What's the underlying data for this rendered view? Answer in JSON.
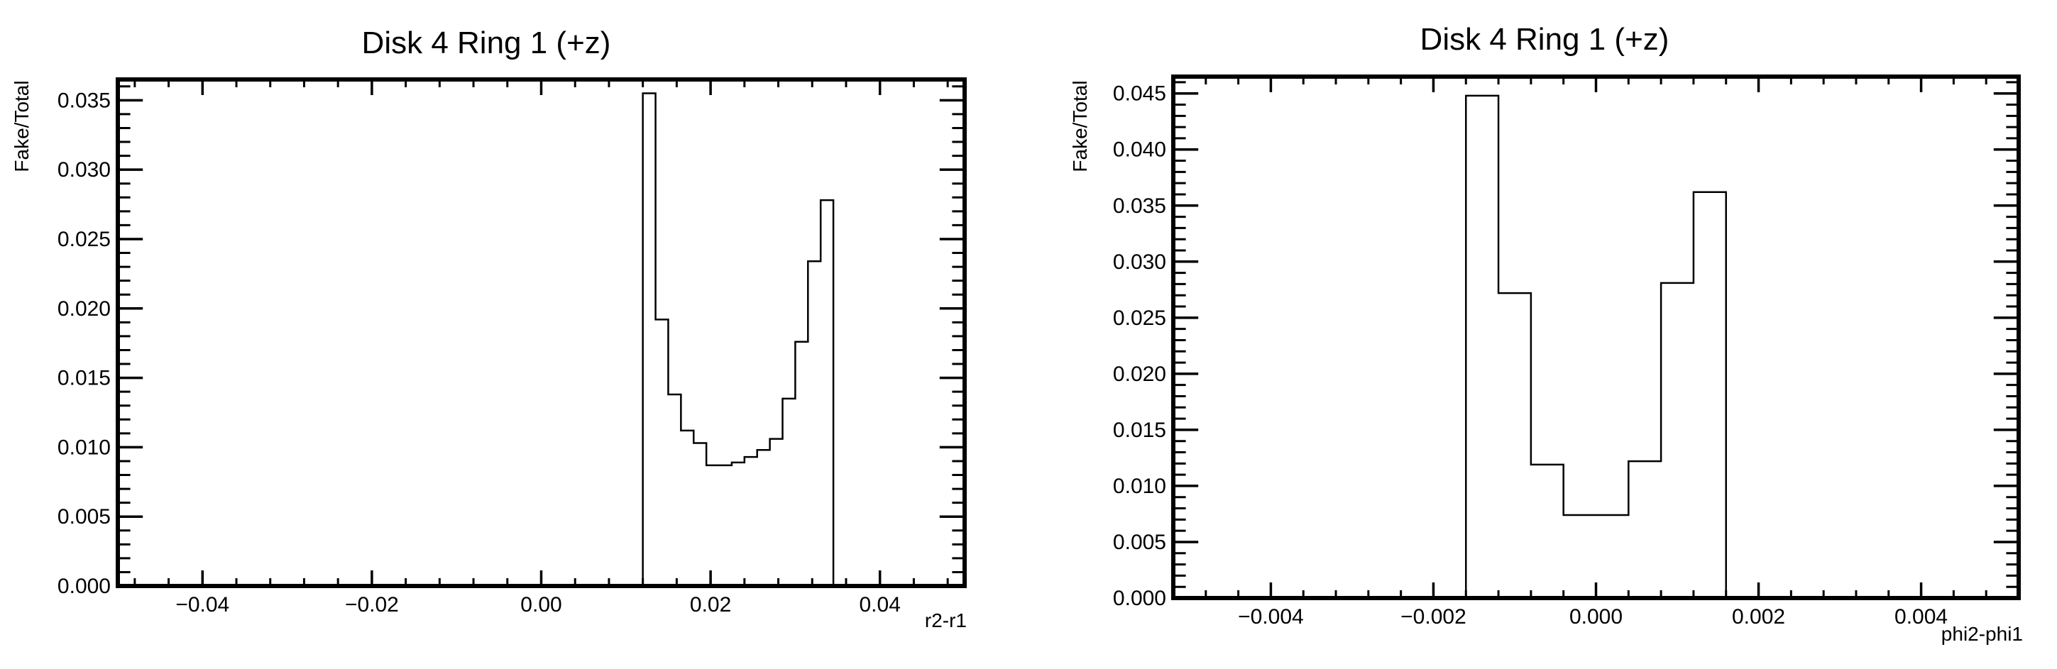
{
  "chart_data": [
    {
      "type": "histogram",
      "title": "Disk 4 Ring 1 (+z)",
      "xlabel": "r2-r1",
      "ylabel": "Fake/Total",
      "xlim": [
        -0.05,
        0.05
      ],
      "ylim": [
        0,
        0.0365
      ],
      "xticks": [
        -0.04,
        -0.02,
        0.0,
        0.02,
        0.04
      ],
      "xtick_labels": [
        "−0.04",
        "−0.02",
        "0.00",
        "0.02",
        "0.04"
      ],
      "yticks": [
        0,
        0.005,
        0.01,
        0.015,
        0.02,
        0.025,
        0.03,
        0.035
      ],
      "ytick_labels": [
        "0.000",
        "0.005",
        "0.010",
        "0.015",
        "0.020",
        "0.025",
        "0.030",
        "0.035"
      ],
      "bin_edges": [
        0.012,
        0.0135,
        0.015,
        0.0165,
        0.018,
        0.0195,
        0.021,
        0.0225,
        0.024,
        0.0255,
        0.027,
        0.0285,
        0.03,
        0.0315,
        0.033,
        0.0345
      ],
      "values": [
        0.0355,
        0.0192,
        0.0138,
        0.0112,
        0.0103,
        0.0087,
        0.0087,
        0.0089,
        0.0093,
        0.0098,
        0.0106,
        0.0135,
        0.0176,
        0.0234,
        0.0278
      ]
    },
    {
      "type": "histogram",
      "title": "Disk 4 Ring 1 (+z)",
      "xlabel": "phi2-phi1",
      "ylabel": "Fake/Total",
      "xlim": [
        -0.0052,
        0.0052
      ],
      "ylim": [
        0,
        0.0465
      ],
      "xticks": [
        -0.004,
        -0.002,
        0.0,
        0.002,
        0.004
      ],
      "xtick_labels": [
        "−0.004",
        "−0.002",
        "0.000",
        "0.002",
        "0.004"
      ],
      "yticks": [
        0,
        0.005,
        0.01,
        0.015,
        0.02,
        0.025,
        0.03,
        0.035,
        0.04,
        0.045
      ],
      "ytick_labels": [
        "0.000",
        "0.005",
        "0.010",
        "0.015",
        "0.020",
        "0.025",
        "0.030",
        "0.035",
        "0.040",
        "0.045"
      ],
      "bin_edges": [
        -0.0016,
        -0.0012,
        -0.0008,
        -0.0004,
        0.0,
        0.0004,
        0.0008,
        0.0012,
        0.0016
      ],
      "values": [
        0.0448,
        0.0272,
        0.0119,
        0.0074,
        0.0074,
        0.0122,
        0.0281,
        0.0362
      ]
    }
  ]
}
